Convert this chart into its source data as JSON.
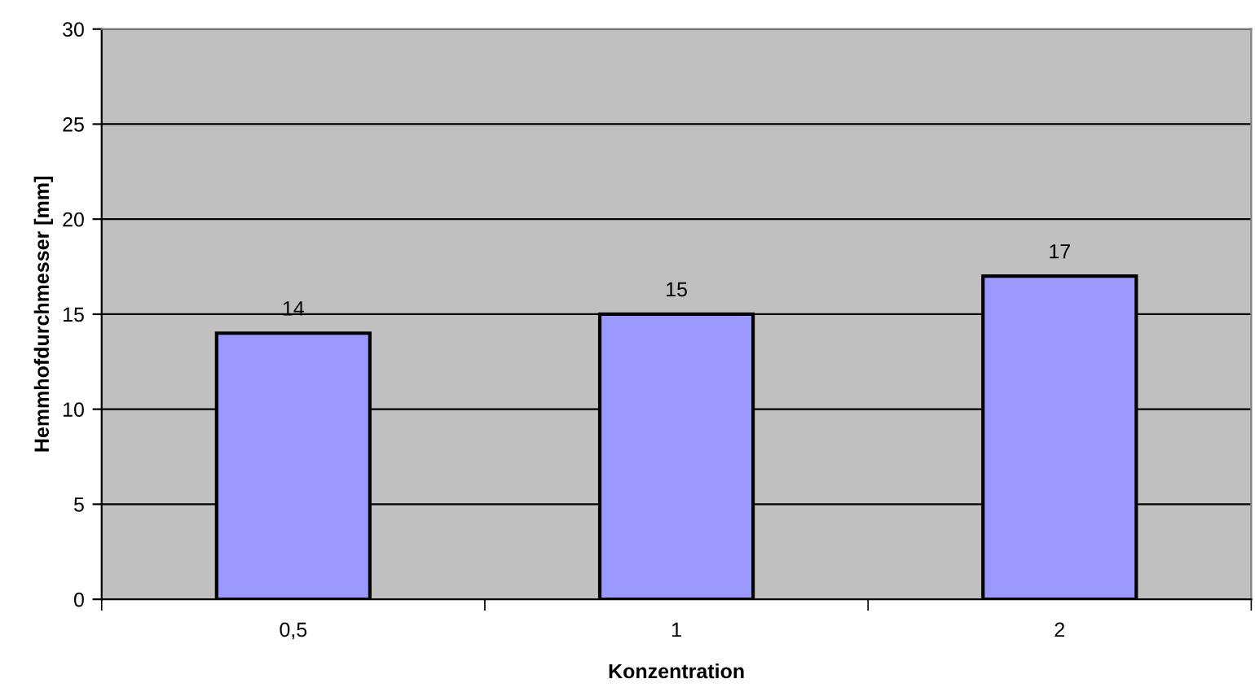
{
  "chart_data": {
    "type": "bar",
    "xlabel": "Konzentration",
    "ylabel": "Hemmhofdurchmesser [mm]",
    "categories": [
      "0,5",
      "1",
      "2"
    ],
    "values": [
      14,
      15,
      17
    ],
    "color": "#9999ff",
    "ylim": [
      0,
      30
    ],
    "yticks": [
      0,
      5,
      10,
      15,
      20,
      25,
      30
    ],
    "grid": "y",
    "data_labels": true
  }
}
